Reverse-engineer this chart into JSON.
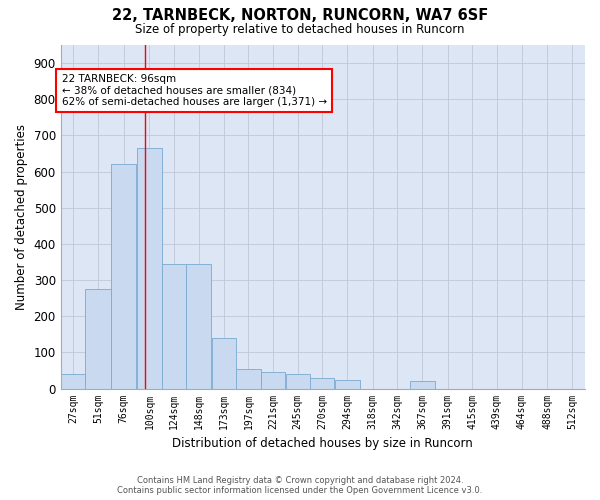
{
  "title": "22, TARNBECK, NORTON, RUNCORN, WA7 6SF",
  "subtitle": "Size of property relative to detached houses in Runcorn",
  "xlabel": "Distribution of detached houses by size in Runcorn",
  "ylabel": "Number of detached properties",
  "bar_color": "#c9daf0",
  "bar_edge_color": "#7aaad0",
  "grid_color": "#c0c8d8",
  "bg_color": "#dce6f5",
  "annotation_text": "22 TARNBECK: 96sqm\n← 38% of detached houses are smaller (834)\n62% of semi-detached houses are larger (1,371) →",
  "vline_x": 96,
  "vline_color": "red",
  "categories": [
    "27sqm",
    "51sqm",
    "76sqm",
    "100sqm",
    "124sqm",
    "148sqm",
    "173sqm",
    "197sqm",
    "221sqm",
    "245sqm",
    "270sqm",
    "294sqm",
    "318sqm",
    "342sqm",
    "367sqm",
    "391sqm",
    "415sqm",
    "439sqm",
    "464sqm",
    "488sqm",
    "512sqm"
  ],
  "bin_edges": [
    14,
    38,
    63,
    88,
    113,
    136,
    161,
    185,
    209,
    233,
    257,
    281,
    306,
    330,
    354,
    379,
    403,
    427,
    451,
    476,
    500,
    525
  ],
  "values": [
    40,
    275,
    620,
    665,
    345,
    345,
    140,
    55,
    45,
    40,
    30,
    25,
    0,
    0,
    20,
    0,
    0,
    0,
    0,
    0,
    0
  ],
  "ylim": [
    0,
    950
  ],
  "yticks": [
    0,
    100,
    200,
    300,
    400,
    500,
    600,
    700,
    800,
    900
  ],
  "footnote": "Contains HM Land Registry data © Crown copyright and database right 2024.\nContains public sector information licensed under the Open Government Licence v3.0."
}
